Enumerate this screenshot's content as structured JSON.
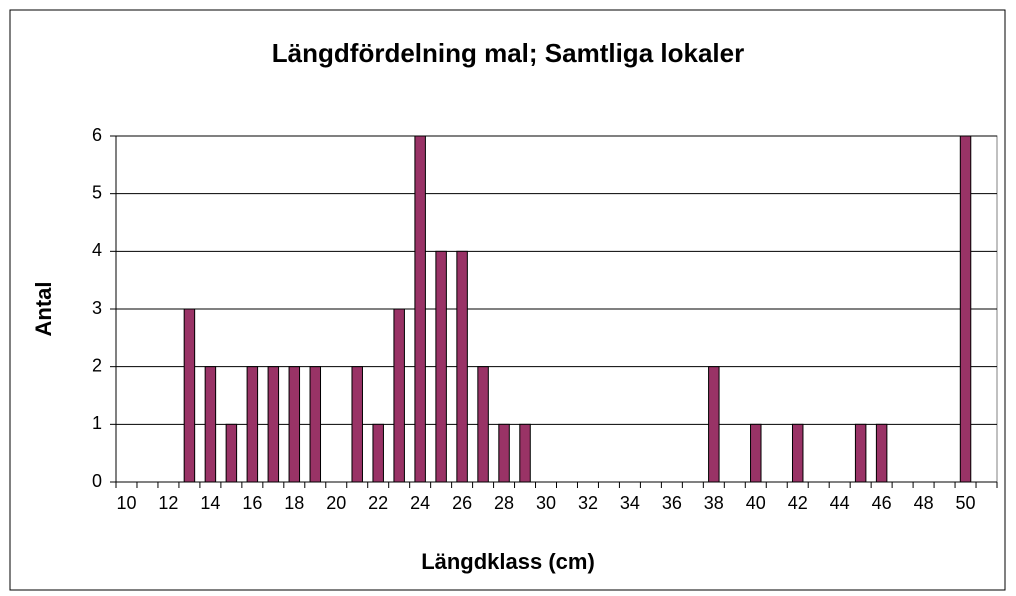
{
  "chart_data": {
    "type": "bar",
    "title": "Längdfördelning mal; Samtliga lokaler",
    "x_label": "Längdklass (cm)",
    "y_label": "Antal",
    "categories": [
      "10",
      null,
      "12",
      null,
      "14",
      null,
      "16",
      null,
      "18",
      null,
      "20",
      null,
      "22",
      null,
      "24",
      null,
      "26",
      null,
      "28",
      null,
      "30",
      null,
      "32",
      null,
      "34",
      null,
      "36",
      null,
      "38",
      null,
      "40",
      null,
      "42",
      null,
      "44",
      null,
      "46",
      null,
      "48",
      null,
      "50",
      null
    ],
    "values": [
      0,
      0,
      0,
      3,
      2,
      1,
      2,
      2,
      2,
      2,
      0,
      2,
      1,
      3,
      6,
      4,
      4,
      2,
      1,
      1,
      0,
      0,
      0,
      0,
      0,
      0,
      0,
      0,
      2,
      0,
      1,
      0,
      1,
      0,
      0,
      1,
      1,
      0,
      0,
      0,
      6,
      0
    ],
    "color": "#993366",
    "ylim": [
      0,
      6
    ],
    "yticks": [
      0,
      1,
      2,
      3,
      4,
      5,
      6
    ],
    "grid": true
  }
}
